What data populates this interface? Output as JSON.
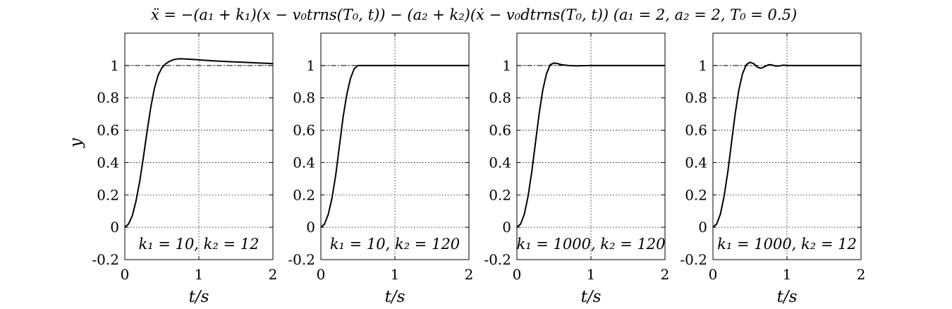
{
  "figure": {
    "title": "ẍ = −(a₁ + k₁)(x − v₀trns(T₀, t)) − (a₂ + k₂)(ẋ − v₀dtrns(T₀, t))    (a₁ = 2, a₂ = 2, T₀ = 0.5)"
  },
  "colors": {
    "line": "#000000",
    "grid": "#000000",
    "background": "#ffffff"
  },
  "chart_data": [
    {
      "type": "line",
      "annotation": "k₁ = 10, k₂ = 12",
      "xlabel": "t/s",
      "ylabel": "y",
      "xlim": [
        0,
        2
      ],
      "ylim": [
        -0.2,
        1.2
      ],
      "xticks": [
        "0",
        "1",
        "2"
      ],
      "yticks": [
        "-0.2",
        "0",
        "0.2",
        "0.4",
        "0.6",
        "0.8",
        "1"
      ],
      "grid": true,
      "reference": {
        "y": 1,
        "style": "dash-dot"
      },
      "series": [
        {
          "x": [
            0,
            0.05,
            0.1,
            0.15,
            0.2,
            0.25,
            0.3,
            0.35,
            0.4,
            0.45,
            0.5,
            0.55,
            0.6,
            0.65,
            0.7,
            0.75,
            0.8,
            0.9,
            1.0,
            1.2,
            1.4,
            1.6,
            1.8,
            2.0
          ],
          "y": [
            0,
            0.02,
            0.07,
            0.16,
            0.28,
            0.43,
            0.59,
            0.74,
            0.86,
            0.94,
            0.985,
            1.01,
            1.025,
            1.035,
            1.04,
            1.042,
            1.041,
            1.038,
            1.035,
            1.029,
            1.024,
            1.02,
            1.016,
            1.012
          ]
        }
      ]
    },
    {
      "type": "line",
      "annotation": "k₁ = 10, k₂ = 120",
      "xlabel": "t/s",
      "ylabel": "",
      "xlim": [
        0,
        2
      ],
      "ylim": [
        -0.2,
        1.2
      ],
      "xticks": [
        "0",
        "1",
        "2"
      ],
      "yticks": [
        "-0.2",
        "0",
        "0.2",
        "0.4",
        "0.6",
        "0.8",
        "1"
      ],
      "grid": true,
      "reference": {
        "y": 1,
        "style": "dash-dot"
      },
      "series": [
        {
          "x": [
            0,
            0.05,
            0.1,
            0.15,
            0.2,
            0.25,
            0.3,
            0.35,
            0.4,
            0.45,
            0.5,
            0.6,
            0.8,
            1.0,
            1.5,
            2.0
          ],
          "y": [
            0,
            0.02,
            0.08,
            0.18,
            0.32,
            0.5,
            0.68,
            0.82,
            0.92,
            0.98,
            1.0,
            1.0,
            1.0,
            1.0,
            1.0,
            1.0
          ]
        }
      ]
    },
    {
      "type": "line",
      "annotation": "k₁ = 1000, k₂ = 120",
      "xlabel": "t/s",
      "ylabel": "",
      "xlim": [
        0,
        2
      ],
      "ylim": [
        -0.2,
        1.2
      ],
      "xticks": [
        "0",
        "1",
        "2"
      ],
      "yticks": [
        "-0.2",
        "0",
        "0.2",
        "0.4",
        "0.6",
        "0.8",
        "1"
      ],
      "grid": true,
      "reference": {
        "y": 1,
        "style": "dash-dot"
      },
      "series": [
        {
          "x": [
            0,
            0.05,
            0.1,
            0.15,
            0.2,
            0.25,
            0.3,
            0.35,
            0.4,
            0.45,
            0.5,
            0.55,
            0.6,
            0.7,
            0.8,
            0.9,
            1.0,
            1.5,
            2.0
          ],
          "y": [
            0,
            0.02,
            0.08,
            0.19,
            0.34,
            0.52,
            0.7,
            0.85,
            0.95,
            1.005,
            1.015,
            1.012,
            1.005,
            1.0,
            0.998,
            0.999,
            1.0,
            1.0,
            1.0
          ]
        }
      ]
    },
    {
      "type": "line",
      "annotation": "k₁ = 1000, k₂ = 12",
      "xlabel": "t/s",
      "ylabel": "",
      "xlim": [
        0,
        2
      ],
      "ylim": [
        -0.2,
        1.2
      ],
      "xticks": [
        "0",
        "1",
        "2"
      ],
      "yticks": [
        "-0.2",
        "0",
        "0.2",
        "0.4",
        "0.6",
        "0.8",
        "1"
      ],
      "grid": true,
      "reference": {
        "y": 1,
        "style": "dash-dot"
      },
      "series": [
        {
          "x": [
            0,
            0.05,
            0.1,
            0.15,
            0.2,
            0.25,
            0.3,
            0.35,
            0.4,
            0.45,
            0.5,
            0.55,
            0.6,
            0.65,
            0.7,
            0.75,
            0.8,
            0.85,
            0.9,
            0.95,
            1.0,
            1.1,
            1.2,
            1.5,
            2.0
          ],
          "y": [
            0,
            0.02,
            0.08,
            0.19,
            0.34,
            0.52,
            0.7,
            0.85,
            0.95,
            1.005,
            1.02,
            1.012,
            0.99,
            0.983,
            0.993,
            1.005,
            1.003,
            0.996,
            0.998,
            1.002,
            1.0,
            1.0,
            1.0,
            1.0,
            1.0
          ]
        }
      ]
    }
  ]
}
